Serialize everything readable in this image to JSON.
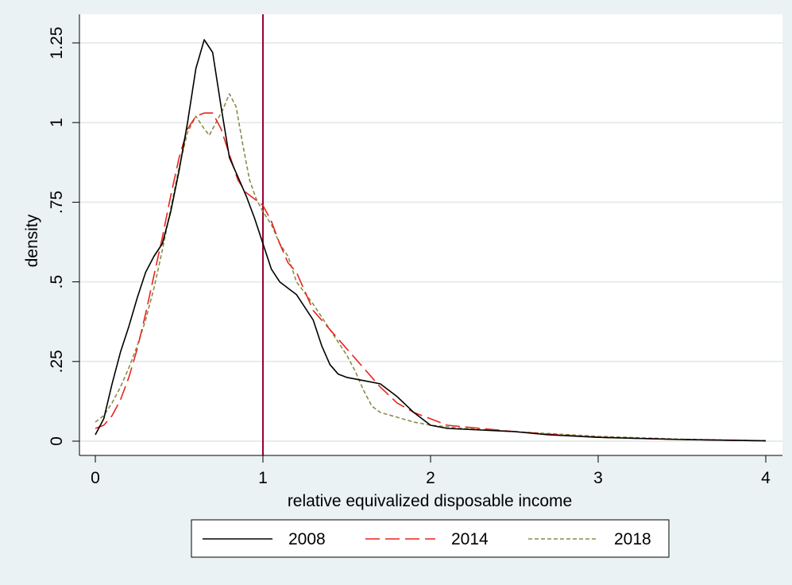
{
  "chart_data": {
    "type": "line",
    "title": "",
    "xlabel": "relative equivalized disposable income",
    "ylabel": "density",
    "xlim": [
      0,
      4
    ],
    "ylim": [
      0,
      1.25
    ],
    "x_ticks": [
      {
        "value": 0,
        "label": "0"
      },
      {
        "value": 1,
        "label": "1"
      },
      {
        "value": 2,
        "label": "2"
      },
      {
        "value": 3,
        "label": "3"
      },
      {
        "value": 4,
        "label": "4"
      }
    ],
    "y_ticks": [
      {
        "value": 0,
        "label": "0"
      },
      {
        "value": 0.25,
        "label": ".25"
      },
      {
        "value": 0.5,
        "label": ".5"
      },
      {
        "value": 0.75,
        "label": ".75"
      },
      {
        "value": 1,
        "label": "1"
      },
      {
        "value": 1.25,
        "label": "1.25"
      }
    ],
    "grid": "horizontal",
    "reference_line": {
      "x": 1,
      "color": "#990033"
    },
    "legend_position": "bottom",
    "series": [
      {
        "name": "2008",
        "color": "#000000",
        "dash": "solid",
        "points": [
          [
            0,
            0.02
          ],
          [
            0.05,
            0.07
          ],
          [
            0.1,
            0.18
          ],
          [
            0.15,
            0.28
          ],
          [
            0.2,
            0.36
          ],
          [
            0.25,
            0.45
          ],
          [
            0.3,
            0.53
          ],
          [
            0.35,
            0.58
          ],
          [
            0.4,
            0.62
          ],
          [
            0.45,
            0.72
          ],
          [
            0.5,
            0.85
          ],
          [
            0.55,
            1.0
          ],
          [
            0.6,
            1.17
          ],
          [
            0.65,
            1.26
          ],
          [
            0.7,
            1.22
          ],
          [
            0.75,
            1.05
          ],
          [
            0.8,
            0.89
          ],
          [
            0.85,
            0.83
          ],
          [
            0.9,
            0.77
          ],
          [
            0.95,
            0.7
          ],
          [
            1.0,
            0.62
          ],
          [
            1.05,
            0.54
          ],
          [
            1.1,
            0.5
          ],
          [
            1.15,
            0.48
          ],
          [
            1.2,
            0.46
          ],
          [
            1.25,
            0.42
          ],
          [
            1.3,
            0.38
          ],
          [
            1.35,
            0.3
          ],
          [
            1.4,
            0.24
          ],
          [
            1.45,
            0.21
          ],
          [
            1.5,
            0.2
          ],
          [
            1.6,
            0.19
          ],
          [
            1.7,
            0.18
          ],
          [
            1.8,
            0.14
          ],
          [
            1.9,
            0.09
          ],
          [
            2.0,
            0.05
          ],
          [
            2.1,
            0.04
          ],
          [
            2.3,
            0.035
          ],
          [
            2.5,
            0.03
          ],
          [
            2.7,
            0.02
          ],
          [
            3.0,
            0.012
          ],
          [
            3.5,
            0.005
          ],
          [
            4.0,
            0.001
          ]
        ]
      },
      {
        "name": "2014",
        "color": "#e8241e",
        "dash": "long-dash",
        "points": [
          [
            0,
            0.04
          ],
          [
            0.05,
            0.05
          ],
          [
            0.1,
            0.08
          ],
          [
            0.15,
            0.13
          ],
          [
            0.2,
            0.2
          ],
          [
            0.25,
            0.29
          ],
          [
            0.3,
            0.4
          ],
          [
            0.35,
            0.52
          ],
          [
            0.4,
            0.64
          ],
          [
            0.45,
            0.77
          ],
          [
            0.5,
            0.89
          ],
          [
            0.55,
            0.98
          ],
          [
            0.6,
            1.02
          ],
          [
            0.65,
            1.03
          ],
          [
            0.7,
            1.03
          ],
          [
            0.75,
            0.98
          ],
          [
            0.8,
            0.9
          ],
          [
            0.85,
            0.82
          ],
          [
            0.9,
            0.78
          ],
          [
            0.95,
            0.76
          ],
          [
            1.0,
            0.74
          ],
          [
            1.05,
            0.69
          ],
          [
            1.1,
            0.62
          ],
          [
            1.15,
            0.56
          ],
          [
            1.2,
            0.53
          ],
          [
            1.25,
            0.47
          ],
          [
            1.3,
            0.41
          ],
          [
            1.4,
            0.35
          ],
          [
            1.5,
            0.29
          ],
          [
            1.6,
            0.23
          ],
          [
            1.7,
            0.17
          ],
          [
            1.8,
            0.12
          ],
          [
            1.9,
            0.09
          ],
          [
            2.0,
            0.07
          ],
          [
            2.1,
            0.05
          ],
          [
            2.3,
            0.04
          ],
          [
            2.5,
            0.03
          ],
          [
            2.7,
            0.022
          ],
          [
            3.0,
            0.012
          ],
          [
            3.5,
            0.005
          ],
          [
            4.0,
            0.001
          ]
        ]
      },
      {
        "name": "2018",
        "color": "#8b8b4a",
        "dash": "short-dash",
        "points": [
          [
            0,
            0.06
          ],
          [
            0.05,
            0.08
          ],
          [
            0.1,
            0.12
          ],
          [
            0.15,
            0.17
          ],
          [
            0.2,
            0.23
          ],
          [
            0.25,
            0.3
          ],
          [
            0.3,
            0.38
          ],
          [
            0.35,
            0.48
          ],
          [
            0.4,
            0.6
          ],
          [
            0.45,
            0.73
          ],
          [
            0.5,
            0.86
          ],
          [
            0.55,
            0.97
          ],
          [
            0.6,
            1.02
          ],
          [
            0.65,
            0.98
          ],
          [
            0.68,
            0.96
          ],
          [
            0.72,
            1.0
          ],
          [
            0.76,
            1.04
          ],
          [
            0.8,
            1.09
          ],
          [
            0.84,
            1.05
          ],
          [
            0.88,
            0.93
          ],
          [
            0.92,
            0.82
          ],
          [
            0.96,
            0.76
          ],
          [
            1.0,
            0.72
          ],
          [
            1.05,
            0.68
          ],
          [
            1.1,
            0.62
          ],
          [
            1.15,
            0.58
          ],
          [
            1.2,
            0.5
          ],
          [
            1.3,
            0.43
          ],
          [
            1.4,
            0.35
          ],
          [
            1.5,
            0.27
          ],
          [
            1.55,
            0.22
          ],
          [
            1.6,
            0.16
          ],
          [
            1.65,
            0.11
          ],
          [
            1.7,
            0.09
          ],
          [
            1.8,
            0.075
          ],
          [
            1.9,
            0.06
          ],
          [
            2.0,
            0.05
          ],
          [
            2.2,
            0.04
          ],
          [
            2.5,
            0.03
          ],
          [
            3.0,
            0.015
          ],
          [
            3.5,
            0.006
          ],
          [
            4.0,
            0.001
          ]
        ]
      }
    ]
  }
}
